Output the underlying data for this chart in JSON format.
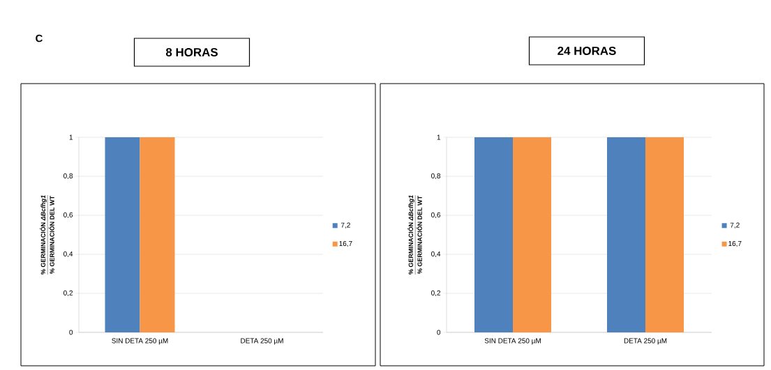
{
  "chart_data": [
    {
      "type": "bar",
      "title": "8 HORAS",
      "ylabel": "% GERMINACIÓN *ΔBcfhg1*",
      "annotations": [
        "C",
        "% GERMINACIÓN DEL WT"
      ],
      "categories": [
        "SIN DETA 250 µM",
        "DETA 250 µM"
      ],
      "series": [
        {
          "name": "7,2",
          "color": "#4f81bd",
          "values": [
            1,
            0
          ]
        },
        {
          "name": "16,7",
          "color": "#f79646",
          "values": [
            1,
            0
          ]
        }
      ],
      "ylim": [
        0,
        1
      ],
      "yticks": [
        0,
        {
          "value": 0.2,
          "label": "0,2"
        },
        {
          "value": 0.4,
          "label": "0,4"
        },
        {
          "value": 0.6,
          "label": "0,6"
        },
        {
          "value": 0.8,
          "label": "0,8"
        },
        1
      ],
      "grid": "y",
      "legend": "right"
    },
    {
      "type": "bar",
      "title": "24 HORAS",
      "ylabel": "% GERMINACIÓN *ΔBcfhg1*",
      "annotations": [
        "% GERMINACIÓN DEL WT"
      ],
      "categories": [
        "SIN DETA 250 µM",
        "DETA 250 µM"
      ],
      "series": [
        {
          "name": "7,2",
          "color": "#4f81bd",
          "values": [
            1,
            1
          ]
        },
        {
          "name": "16,7",
          "color": "#f79646",
          "values": [
            1,
            1
          ]
        }
      ],
      "ylim": [
        0,
        1
      ],
      "yticks": [
        0,
        {
          "value": 0.2,
          "label": "0,2"
        },
        {
          "value": 0.4,
          "label": "0,4"
        },
        {
          "value": 0.6,
          "label": "0,6"
        },
        {
          "value": 0.8,
          "label": "0,8"
        },
        1
      ],
      "grid": "y",
      "legend": "right"
    }
  ]
}
